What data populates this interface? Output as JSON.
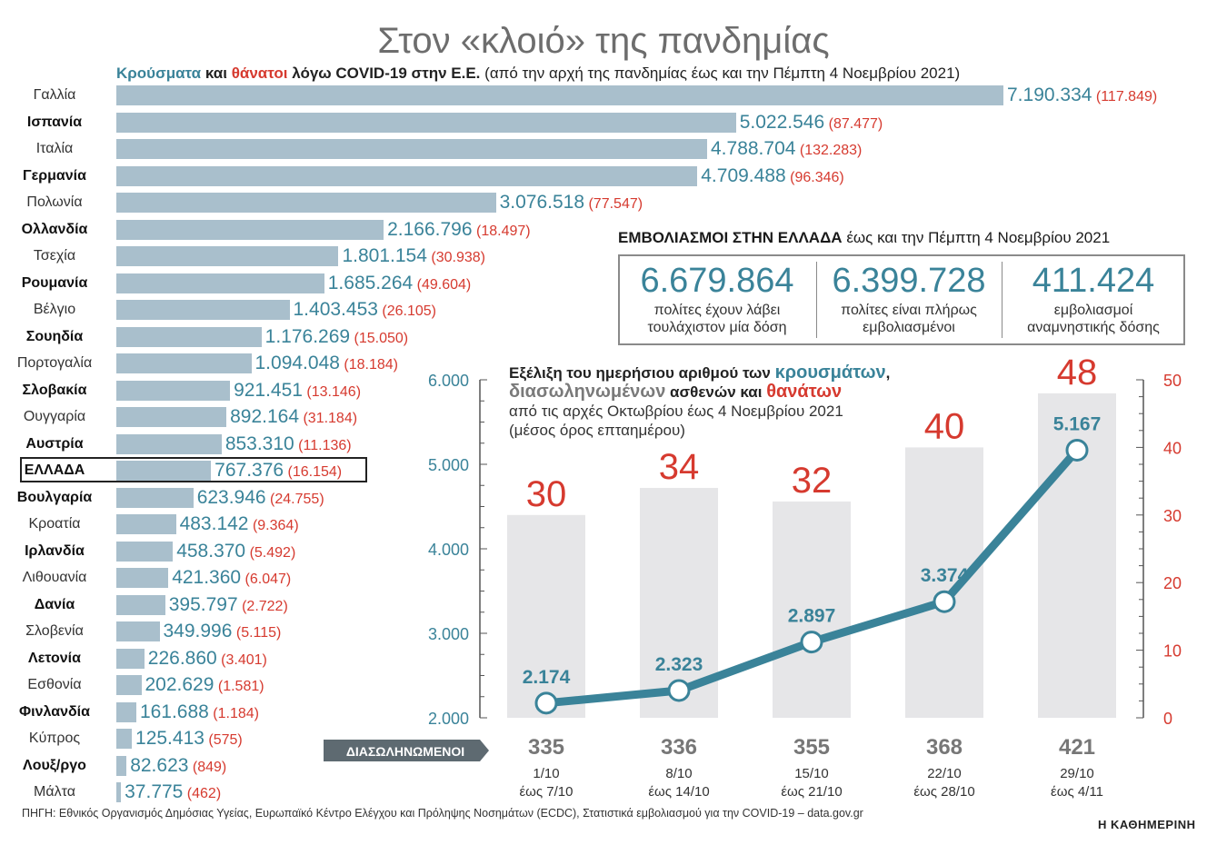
{
  "title": "Στον «κλοιό» της πανδημίας",
  "subtitle": {
    "cases": "Κρούσματα",
    "and": "και",
    "deaths": "θάνατοι",
    "rest": "λόγω COVID-19 στην Ε.Ε.",
    "period": "(από την αρχή της πανδημίας έως και την Πέμπτη 4 Νοεμβρίου 2021)"
  },
  "colors": {
    "teal": "#3a8399",
    "red": "#d63a2f",
    "bar": "#a9bfcc",
    "column": "#e6e6e8"
  },
  "chart_data": [
    {
      "type": "bar",
      "orientation": "horizontal",
      "title": "Κρούσματα και θάνατοι λόγω COVID-19 στην Ε.Ε.",
      "categories": [
        "Γαλλία",
        "Ισπανία",
        "Ιταλία",
        "Γερμανία",
        "Πολωνία",
        "Ολλανδία",
        "Τσεχία",
        "Ρουμανία",
        "Βέλγιο",
        "Σουηδία",
        "Πορτογαλία",
        "Σλοβακία",
        "Ουγγαρία",
        "Αυστρία",
        "ΕΛΛΑΔΑ",
        "Βουλγαρία",
        "Κροατία",
        "Ιρλανδία",
        "Λιθουανία",
        "Δανία",
        "Σλοβενία",
        "Λετονία",
        "Εσθονία",
        "Φινλανδία",
        "Κύπρος",
        "Λουξ/ργο",
        "Μάλτα"
      ],
      "labels_bold": [
        false,
        true,
        false,
        true,
        false,
        true,
        false,
        true,
        false,
        true,
        false,
        true,
        false,
        true,
        true,
        true,
        false,
        true,
        false,
        true,
        false,
        true,
        false,
        true,
        false,
        true,
        false
      ],
      "values": [
        7190334,
        5022546,
        4788704,
        4709488,
        3076518,
        2166796,
        1801154,
        1685264,
        1403453,
        1176269,
        1094048,
        921451,
        892164,
        853310,
        767376,
        623946,
        483142,
        458370,
        421360,
        395797,
        349996,
        226860,
        202629,
        161688,
        125413,
        82623,
        37775
      ],
      "value_labels": [
        "7.190.334",
        "5.022.546",
        "4.788.704",
        "4.709.488",
        "3.076.518",
        "2.166.796",
        "1.801.154",
        "1.685.264",
        "1.403.453",
        "1.176.269",
        "1.094.048",
        "921.451",
        "892.164",
        "853.310",
        "767.376",
        "623.946",
        "483.142",
        "458.370",
        "421.360",
        "395.797",
        "349.996",
        "226.860",
        "202.629",
        "161.688",
        "125.413",
        "82.623",
        "37.775"
      ],
      "deaths": [
        117849,
        87477,
        132283,
        96346,
        77547,
        18497,
        30938,
        49604,
        26105,
        15050,
        18184,
        13146,
        31184,
        11136,
        16154,
        24755,
        9364,
        5492,
        6047,
        2722,
        5115,
        3401,
        1581,
        1184,
        575,
        849,
        462
      ],
      "death_labels": [
        "(117.849)",
        "(87.477)",
        "(132.283)",
        "(96.346)",
        "(77.547)",
        "(18.497)",
        "(30.938)",
        "(49.604)",
        "(26.105)",
        "(15.050)",
        "(18.184)",
        "(13.146)",
        "(31.184)",
        "(11.136)",
        "(16.154)",
        "(24.755)",
        "(9.364)",
        "(5.492)",
        "(6.047)",
        "(2.722)",
        "(5.115)",
        "(3.401)",
        "(1.581)",
        "(1.184)",
        "(575)",
        "(849)",
        "(462)"
      ],
      "highlight": "ΕΛΛΑΔΑ"
    },
    {
      "type": "line+bar",
      "title_parts": {
        "p1": "Εξέλιξη του ημερήσιου αριθμού των ",
        "cases": "κρουσμάτων",
        "comma": ",",
        "hosp": "διασωληνωμένων",
        "p2": " ασθενών και ",
        "deaths": "θανάτων",
        "line2": "από τις αρχές Οκτωβρίου έως 4 Νοεμβρίου 2021",
        "line3": "(μέσος όρος επταημέρου)"
      },
      "periods": [
        {
          "from": "1/10",
          "to": "έως 7/10"
        },
        {
          "from": "8/10",
          "to": "έως 14/10"
        },
        {
          "from": "15/10",
          "to": "έως 21/10"
        },
        {
          "from": "22/10",
          "to": "έως 28/10"
        },
        {
          "from": "29/10",
          "to": "έως 4/11"
        }
      ],
      "cases": [
        2174,
        2323,
        2897,
        3374,
        5167
      ],
      "case_labels": [
        "2.174",
        "2.323",
        "2.897",
        "3.374",
        "5.167"
      ],
      "deaths": [
        30,
        34,
        32,
        40,
        48
      ],
      "intubated": [
        335,
        336,
        355,
        368,
        421
      ],
      "intubated_label": "ΔΙΑΣΩΛΗΝΩΜΕΝΟΙ",
      "left_axis": {
        "ticks": [
          2000,
          3000,
          4000,
          5000,
          6000
        ],
        "labels": [
          "2.000",
          "3.000",
          "4.000",
          "5.000",
          "6.000"
        ],
        "range": [
          2000,
          6000
        ]
      },
      "right_axis": {
        "ticks": [
          0,
          10,
          20,
          30,
          40,
          50
        ],
        "labels": [
          "0",
          "10",
          "20",
          "30",
          "40",
          "50"
        ],
        "range": [
          0,
          50
        ]
      }
    }
  ],
  "vaccination": {
    "title_bold": "ΕΜΒΟΛΙΑΣΜΟΙ ΣΤΗΝ ΕΛΛΑΔΑ",
    "title_rest": "έως και την Πέμπτη 4 Νοεμβρίου 2021",
    "items": [
      {
        "value": "6.679.864",
        "label1": "πολίτες έχουν λάβει",
        "label2": "τουλάχιστον μία δόση"
      },
      {
        "value": "6.399.728",
        "label1": "πολίτες είναι πλήρως",
        "label2": "εμβολιασμένοι"
      },
      {
        "value": "411.424",
        "label1": "εμβολιασμοί",
        "label2": "αναμνηστικής δόσης"
      }
    ]
  },
  "source": "ΠΗΓΗ: Εθνικός Οργανισμός Δημόσιας Υγείας, Ευρωπαϊκό Κέντρο Ελέγχου και Πρόληψης Νοσημάτων (ECDC), Στατιστικά εμβολιασμού για την COVID-19 – data.gov.gr",
  "brand": "Η ΚΑΘΗΜΕΡΙΝΗ"
}
